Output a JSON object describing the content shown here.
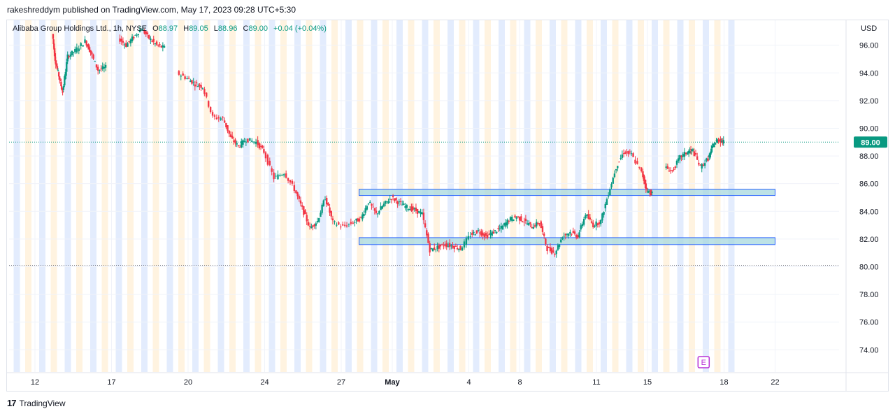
{
  "publisher_text": "rakeshreddym published on TradingView.com, May 17, 2023 09:28 UTC+5:30",
  "symbol": {
    "name": "Alibaba Group Holdings Ltd., 1h, NYSE",
    "o_label": "O",
    "o_value": "88.97",
    "h_label": "H",
    "h_value": "89.05",
    "l_label": "L",
    "l_value": "88.96",
    "c_label": "C",
    "c_value": "89.00",
    "change": "+0.04 (+0.04%)"
  },
  "footer": {
    "brand": "TradingView",
    "logo_text": "17"
  },
  "colors": {
    "up": "#089981",
    "down": "#f23645",
    "zone_fill": "#a7d8de",
    "zone_border": "#2962ff",
    "last_price_bg": "#089981",
    "session_pre": "#fff3e0",
    "session_post": "#e3ecfd"
  },
  "chart_data": {
    "type": "candlestick",
    "currency_label": "USD",
    "last_price_label": "89.00",
    "y_ticks": [
      "96.00",
      "94.00",
      "92.00",
      "90.00",
      "88.00",
      "86.00",
      "84.00",
      "82.00",
      "80.00",
      "78.00",
      "76.00",
      "74.00"
    ],
    "ylim": [
      72.4,
      97.8
    ],
    "x_ticks": [
      {
        "label": "12",
        "day": 0
      },
      {
        "label": "17",
        "day": 3
      },
      {
        "label": "20",
        "day": 6
      },
      {
        "label": "24",
        "day": 9
      },
      {
        "label": "27",
        "day": 12
      },
      {
        "label": "May",
        "day": 14
      },
      {
        "label": "4",
        "day": 17
      },
      {
        "label": "8",
        "day": 19
      },
      {
        "label": "11",
        "day": 22
      },
      {
        "label": "15",
        "day": 24
      },
      {
        "label": "18",
        "day": 27
      },
      {
        "label": "22",
        "day": 29
      }
    ],
    "earnings_marker": "E",
    "zones": [
      {
        "name": "resistance-zone",
        "from_day": 12.7,
        "to_day": 29.0,
        "top": 85.6,
        "bottom": 85.2
      },
      {
        "name": "support-zone",
        "from_day": 12.7,
        "to_day": 29.0,
        "top": 82.1,
        "bottom": 81.6
      }
    ],
    "reference_lines": [
      89.0,
      80.1
    ],
    "path": [
      {
        "d": 0.7,
        "p": 96.8
      },
      {
        "d": 0.8,
        "p": 95.0
      },
      {
        "d": 0.95,
        "p": 93.8
      },
      {
        "d": 1.1,
        "p": 92.6
      },
      {
        "d": 1.3,
        "p": 95.2
      },
      {
        "d": 1.6,
        "p": 95.6
      },
      {
        "d": 2.0,
        "p": 96.3
      },
      {
        "d": 2.2,
        "p": 95.5
      },
      {
        "d": 2.5,
        "p": 94.2
      },
      {
        "d": 2.8,
        "p": 94.4
      },
      {
        "d": 3.3,
        "p": 96.5
      },
      {
        "d": 3.6,
        "p": 96.0
      },
      {
        "d": 3.9,
        "p": 96.6
      },
      {
        "d": 4.2,
        "p": 97.2
      },
      {
        "d": 4.5,
        "p": 96.5
      },
      {
        "d": 4.8,
        "p": 96.0
      },
      {
        "d": 5.1,
        "p": 95.8
      },
      {
        "d": 5.6,
        "p": 94.0
      },
      {
        "d": 6.0,
        "p": 93.6
      },
      {
        "d": 6.3,
        "p": 93.2
      },
      {
        "d": 6.6,
        "p": 93.0
      },
      {
        "d": 7.0,
        "p": 90.8
      },
      {
        "d": 7.4,
        "p": 90.7
      },
      {
        "d": 7.7,
        "p": 89.3
      },
      {
        "d": 8.0,
        "p": 88.7
      },
      {
        "d": 8.3,
        "p": 89.2
      },
      {
        "d": 8.7,
        "p": 89.0
      },
      {
        "d": 9.0,
        "p": 88.3
      },
      {
        "d": 9.4,
        "p": 86.4
      },
      {
        "d": 9.8,
        "p": 86.8
      },
      {
        "d": 10.2,
        "p": 85.6
      },
      {
        "d": 10.5,
        "p": 84.2
      },
      {
        "d": 10.8,
        "p": 82.8
      },
      {
        "d": 11.1,
        "p": 83.3
      },
      {
        "d": 11.4,
        "p": 85.0
      },
      {
        "d": 11.7,
        "p": 83.2
      },
      {
        "d": 12.1,
        "p": 82.9
      },
      {
        "d": 12.5,
        "p": 83.2
      },
      {
        "d": 12.8,
        "p": 83.5
      },
      {
        "d": 13.1,
        "p": 84.7
      },
      {
        "d": 13.4,
        "p": 83.8
      },
      {
        "d": 13.7,
        "p": 84.5
      },
      {
        "d": 14.0,
        "p": 85.0
      },
      {
        "d": 14.3,
        "p": 84.6
      },
      {
        "d": 14.6,
        "p": 84.3
      },
      {
        "d": 14.9,
        "p": 84.1
      },
      {
        "d": 15.2,
        "p": 83.8
      },
      {
        "d": 15.5,
        "p": 81.2
      },
      {
        "d": 15.8,
        "p": 81.4
      },
      {
        "d": 16.1,
        "p": 81.6
      },
      {
        "d": 16.4,
        "p": 81.5
      },
      {
        "d": 16.7,
        "p": 81.3
      },
      {
        "d": 17.1,
        "p": 82.3
      },
      {
        "d": 17.4,
        "p": 82.6
      },
      {
        "d": 17.7,
        "p": 82.2
      },
      {
        "d": 18.0,
        "p": 82.5
      },
      {
        "d": 18.3,
        "p": 82.8
      },
      {
        "d": 18.6,
        "p": 83.4
      },
      {
        "d": 18.9,
        "p": 83.6
      },
      {
        "d": 19.2,
        "p": 83.3
      },
      {
        "d": 19.5,
        "p": 82.9
      },
      {
        "d": 19.8,
        "p": 83.2
      },
      {
        "d": 20.1,
        "p": 81.3
      },
      {
        "d": 20.4,
        "p": 81.0
      },
      {
        "d": 20.7,
        "p": 82.2
      },
      {
        "d": 21.0,
        "p": 82.5
      },
      {
        "d": 21.3,
        "p": 82.2
      },
      {
        "d": 21.6,
        "p": 83.8
      },
      {
        "d": 21.9,
        "p": 83.0
      },
      {
        "d": 22.2,
        "p": 83.3
      },
      {
        "d": 22.5,
        "p": 85.3
      },
      {
        "d": 22.8,
        "p": 87.2
      },
      {
        "d": 23.1,
        "p": 88.3
      },
      {
        "d": 23.4,
        "p": 88.1
      },
      {
        "d": 23.8,
        "p": 86.8
      },
      {
        "d": 24.0,
        "p": 85.5
      },
      {
        "d": 24.2,
        "p": 85.3
      },
      {
        "d": 24.7,
        "p": 87.2
      },
      {
        "d": 25.0,
        "p": 86.9
      },
      {
        "d": 25.3,
        "p": 87.9
      },
      {
        "d": 25.6,
        "p": 88.3
      },
      {
        "d": 25.8,
        "p": 88.4
      },
      {
        "d": 26.1,
        "p": 87.2
      },
      {
        "d": 26.4,
        "p": 87.8
      },
      {
        "d": 26.6,
        "p": 88.8
      },
      {
        "d": 26.8,
        "p": 89.2
      },
      {
        "d": 27.0,
        "p": 89.0
      }
    ]
  }
}
